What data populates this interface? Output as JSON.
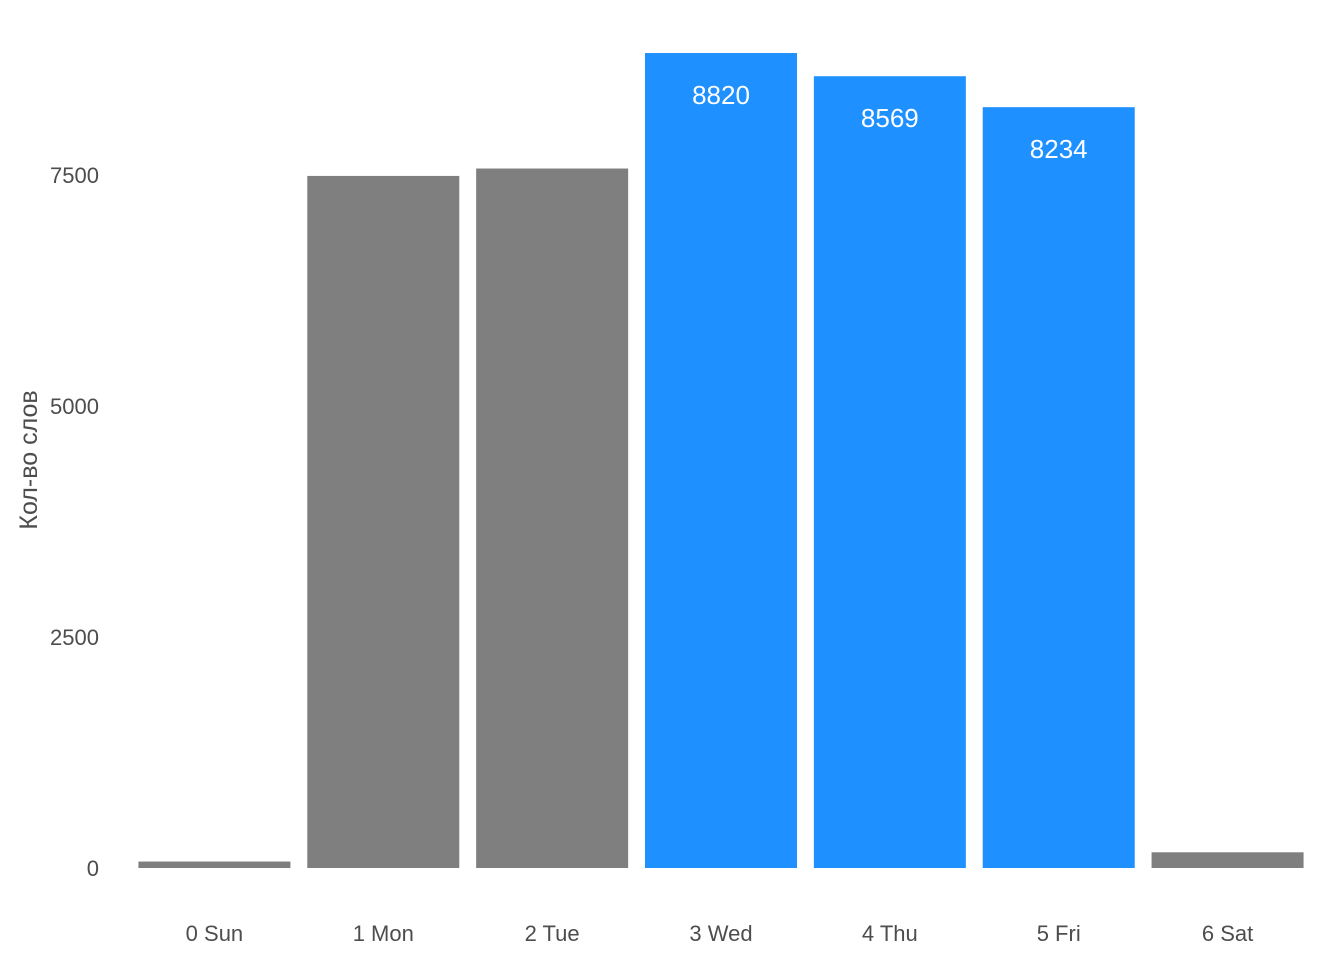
{
  "chart_data": {
    "type": "bar",
    "title": "",
    "xlabel": "",
    "ylabel": "Кол-во слов",
    "categories": [
      "0 Sun",
      "1 Mon",
      "2 Tue",
      "3 Wed",
      "4 Thu",
      "5 Fri",
      "6 Sat"
    ],
    "values": [
      70,
      7490,
      7570,
      8820,
      8569,
      8234,
      170
    ],
    "highlighted": [
      false,
      false,
      false,
      true,
      true,
      true,
      false
    ],
    "data_labels": [
      "",
      "",
      "",
      "8820",
      "8569",
      "8234",
      ""
    ],
    "yticks": [
      0,
      2500,
      5000,
      7500
    ],
    "ytick_labels": [
      "0",
      "2500",
      "5000",
      "7500"
    ],
    "ylim": [
      0,
      9200
    ],
    "grid": false,
    "legend": "none",
    "colors": {
      "default": "#7f7f7f",
      "highlight": "#1e90ff",
      "label_text": "#ffffff",
      "axis_text": "#4d4d4d"
    }
  }
}
